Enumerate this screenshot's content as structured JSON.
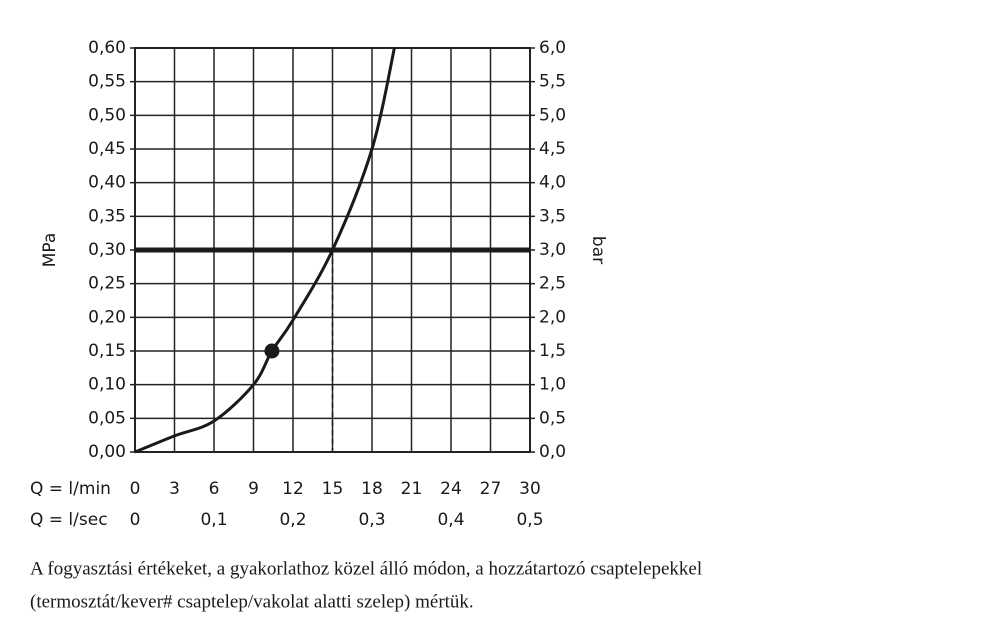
{
  "chart_data": {
    "type": "line",
    "ylabel": "MPa",
    "y2label": "bar",
    "xlabel": "Q = l/min",
    "x2label": "Q = l/sec",
    "xlim": [
      0,
      30
    ],
    "xticks": [
      0,
      3,
      6,
      9,
      12,
      15,
      18,
      21,
      24,
      27,
      30
    ],
    "x2lim": [
      0,
      0.5
    ],
    "x2ticks": [
      0,
      {
        "value": 0.1,
        "label": "0,1"
      },
      {
        "value": 0.2,
        "label": "0,2"
      },
      {
        "value": 0.3,
        "label": "0,3"
      },
      {
        "value": 0.4,
        "label": "0,4"
      },
      {
        "value": 0.5,
        "label": "0,5"
      }
    ],
    "ylim": [
      0,
      0.6
    ],
    "yticks": [
      {
        "value": 0,
        "label": "0,00"
      },
      {
        "value": 0.05,
        "label": "0,05"
      },
      {
        "value": 0.1,
        "label": "0,10"
      },
      {
        "value": 0.15,
        "label": "0,15"
      },
      {
        "value": 0.2,
        "label": "0,20"
      },
      {
        "value": 0.25,
        "label": "0,25"
      },
      {
        "value": 0.3,
        "label": "0,30"
      },
      {
        "value": 0.35,
        "label": "0,35"
      },
      {
        "value": 0.4,
        "label": "0,40"
      },
      {
        "value": 0.45,
        "label": "0,45"
      },
      {
        "value": 0.5,
        "label": "0,50"
      },
      {
        "value": 0.55,
        "label": "0,55"
      },
      {
        "value": 0.6,
        "label": "0,60"
      }
    ],
    "y2lim": [
      0,
      6
    ],
    "y2ticks": [
      {
        "value": 0,
        "label": "0,0"
      },
      {
        "value": 0.5,
        "label": "0,5"
      },
      {
        "value": 1,
        "label": "1,0"
      },
      {
        "value": 1.5,
        "label": "1,5"
      },
      {
        "value": 2,
        "label": "2,0"
      },
      {
        "value": 2.5,
        "label": "2,5"
      },
      {
        "value": 3,
        "label": "3,0"
      },
      {
        "value": 3.5,
        "label": "3,5"
      },
      {
        "value": 4,
        "label": "4,0"
      },
      {
        "value": 4.5,
        "label": "4,5"
      },
      {
        "value": 5,
        "label": "5,0"
      },
      {
        "value": 5.5,
        "label": "5,5"
      },
      {
        "value": 6,
        "label": "6,0"
      }
    ],
    "grid": true,
    "series": [
      {
        "color": "#1a1a1a",
        "x": [
          0,
          3,
          6,
          9,
          10.4,
          12,
          15,
          18,
          19.7
        ],
        "values": [
          0,
          0.024,
          0.046,
          0.1,
          0.15,
          0.196,
          0.3,
          0.45,
          0.6
        ]
      }
    ],
    "marker": {
      "x": 10.4,
      "y": 0.15,
      "color": "#1a1a1a"
    },
    "hline": 0.3,
    "vline": 15,
    "caption": [
      "A fogyasztási értékeket, a gyakorlathoz közel álló módon, a hozzátartozó csaptelepekkel",
      "(termosztát/kever# csaptelep/vakolat alatti szelep) mértük."
    ]
  }
}
